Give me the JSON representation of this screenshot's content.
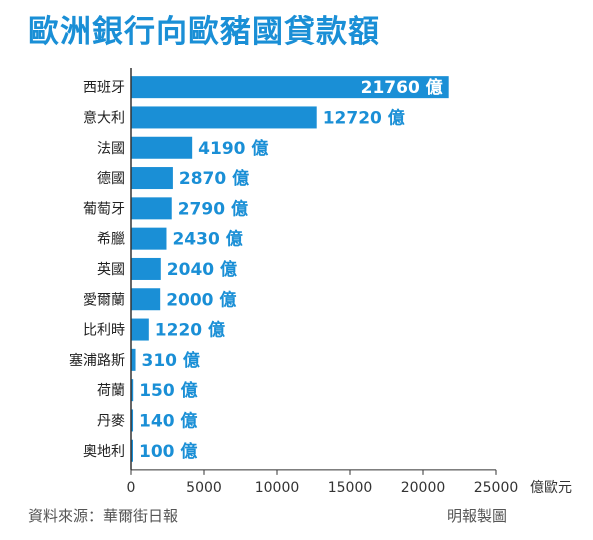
{
  "chart_data": {
    "type": "bar",
    "orientation": "horizontal",
    "title": "歐洲銀行向歐豬國貸款額",
    "categories": [
      "西班牙",
      "意大利",
      "法國",
      "德國",
      "葡萄牙",
      "希臘",
      "英國",
      "愛爾蘭",
      "比利時",
      "塞浦路斯",
      "荷蘭",
      "丹麥",
      "奧地利"
    ],
    "values": [
      21760,
      12720,
      4190,
      2870,
      2790,
      2430,
      2040,
      2000,
      1220,
      310,
      150,
      140,
      100
    ],
    "value_labels": [
      "21760 億",
      "12720 億",
      "4190 億",
      "2870 億",
      "2790 億",
      "2430 億",
      "2040 億",
      "2000 億",
      "1220 億",
      "310 億",
      "150 億",
      "140 億",
      "100 億"
    ],
    "xlim": [
      0,
      25000
    ],
    "x_ticks": [
      0,
      5000,
      10000,
      15000,
      20000,
      25000
    ],
    "x_tick_labels": [
      "0",
      "5000",
      "10000",
      "15000",
      "20000",
      "25000"
    ],
    "unit": "億歐元",
    "bar_color": "#1a8fd6",
    "grid": false
  },
  "source": "資料來源：華爾街日報",
  "credit": "明報製圖"
}
